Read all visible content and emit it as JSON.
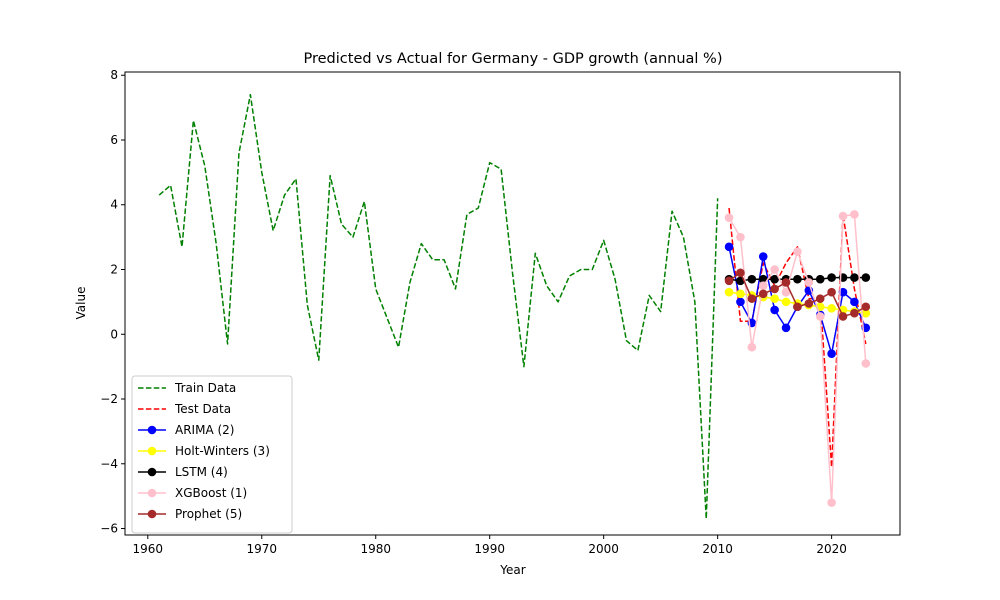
{
  "chart_data": {
    "type": "line",
    "title": "Predicted vs Actual for Germany - GDP growth (annual %)",
    "xlabel": "Year",
    "ylabel": "Value",
    "xlim": [
      1958,
      2026
    ],
    "ylim": [
      -6.2,
      8.1
    ],
    "xticks": [
      1960,
      1970,
      1980,
      1990,
      2000,
      2010,
      2020
    ],
    "yticks": [
      -6,
      -4,
      -2,
      0,
      2,
      4,
      6,
      8
    ],
    "grid": false,
    "legend_position": "lower-left",
    "series": [
      {
        "name": "Train Data",
        "color": "#008000",
        "style": "dashed",
        "marker": "none",
        "x": [
          1961,
          1962,
          1963,
          1964,
          1965,
          1966,
          1967,
          1968,
          1969,
          1970,
          1971,
          1972,
          1973,
          1974,
          1975,
          1976,
          1977,
          1978,
          1979,
          1980,
          1981,
          1982,
          1983,
          1984,
          1985,
          1986,
          1987,
          1988,
          1989,
          1990,
          1991,
          1992,
          1993,
          1994,
          1995,
          1996,
          1997,
          1998,
          1999,
          2000,
          2001,
          2002,
          2003,
          2004,
          2005,
          2006,
          2007,
          2008,
          2009,
          2010
        ],
        "y": [
          4.3,
          4.6,
          2.7,
          6.6,
          5.2,
          2.8,
          -0.3,
          5.6,
          7.4,
          5.0,
          3.2,
          4.3,
          4.8,
          0.9,
          -0.8,
          4.9,
          3.4,
          3.0,
          4.1,
          1.4,
          0.5,
          -0.4,
          1.6,
          2.8,
          2.3,
          2.3,
          1.4,
          3.7,
          3.9,
          5.3,
          5.1,
          1.9,
          -1.0,
          2.5,
          1.5,
          1.0,
          1.8,
          2.0,
          2.0,
          2.9,
          1.7,
          -0.2,
          -0.5,
          1.2,
          0.7,
          3.8,
          3.0,
          1.0,
          -5.7,
          4.2
        ]
      },
      {
        "name": "Test Data",
        "color": "#ff0000",
        "style": "dashed",
        "marker": "none",
        "x": [
          2011,
          2012,
          2013,
          2014,
          2015,
          2016,
          2017,
          2018,
          2019,
          2020,
          2021,
          2022,
          2023
        ],
        "y": [
          3.9,
          0.4,
          0.4,
          2.2,
          1.5,
          2.2,
          2.7,
          1.1,
          1.1,
          -4.1,
          3.7,
          1.4,
          -0.3
        ]
      },
      {
        "name": "ARIMA (2)",
        "color": "#0000ff",
        "style": "solid",
        "marker": "circle",
        "x": [
          2011,
          2012,
          2013,
          2014,
          2015,
          2016,
          2017,
          2018,
          2019,
          2020,
          2021,
          2022,
          2023
        ],
        "y": [
          2.7,
          1.0,
          0.35,
          2.4,
          0.75,
          0.2,
          0.85,
          1.35,
          0.6,
          -0.6,
          1.3,
          1.0,
          0.2
        ]
      },
      {
        "name": "Holt-Winters (3)",
        "color": "#ffff00",
        "style": "solid",
        "marker": "circle",
        "x": [
          2011,
          2012,
          2013,
          2014,
          2015,
          2016,
          2017,
          2018,
          2019,
          2020,
          2021,
          2022,
          2023
        ],
        "y": [
          1.3,
          1.25,
          1.2,
          1.15,
          1.1,
          1.0,
          0.95,
          0.9,
          0.85,
          0.8,
          0.75,
          0.7,
          0.65
        ]
      },
      {
        "name": "LSTM (4)",
        "color": "#000000",
        "style": "solid",
        "marker": "circle",
        "x": [
          2011,
          2012,
          2013,
          2014,
          2015,
          2016,
          2017,
          2018,
          2019,
          2020,
          2021,
          2022,
          2023
        ],
        "y": [
          1.7,
          1.65,
          1.7,
          1.7,
          1.7,
          1.7,
          1.7,
          1.7,
          1.7,
          1.75,
          1.75,
          1.75,
          1.75
        ]
      },
      {
        "name": "XGBoost (1)",
        "color": "#ffc0cb",
        "style": "solid",
        "marker": "circle",
        "x": [
          2011,
          2012,
          2013,
          2014,
          2015,
          2016,
          2017,
          2018,
          2019,
          2020,
          2021,
          2022,
          2023
        ],
        "y": [
          3.6,
          3.0,
          -0.4,
          1.5,
          2.0,
          1.3,
          2.55,
          1.6,
          0.55,
          -5.2,
          3.65,
          3.7,
          -0.9
        ]
      },
      {
        "name": "Prophet (5)",
        "color": "#a52a2a",
        "style": "solid",
        "marker": "circle",
        "x": [
          2011,
          2012,
          2013,
          2014,
          2015,
          2016,
          2017,
          2018,
          2019,
          2020,
          2021,
          2022,
          2023
        ],
        "y": [
          1.65,
          1.9,
          1.1,
          1.25,
          1.4,
          1.6,
          0.85,
          0.95,
          1.1,
          1.3,
          0.55,
          0.65,
          0.85
        ]
      }
    ]
  }
}
